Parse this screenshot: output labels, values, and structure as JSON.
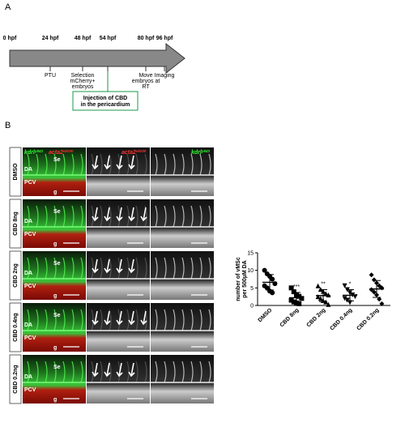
{
  "panel_a": {
    "letter": "A",
    "timepoints": [
      "0 hpf",
      "24 hpf",
      "48 hpf",
      "54 hpf",
      "80 hpf",
      "96 hpf"
    ],
    "events": [
      [
        "PTU"
      ],
      [
        "Selection",
        "mCherry+",
        "embryos"
      ],
      [
        "Move",
        "embryos at",
        "RT"
      ],
      [
        "Imaging"
      ]
    ],
    "injection": [
      "Injection of CBD",
      "in the pericardium"
    ]
  },
  "panel_b": {
    "letter": "B",
    "rows": [
      "DMSO",
      "CBD 8ng",
      "CBD 2ng",
      "CBD 0.4ng",
      "CBD 0.2ng"
    ],
    "channels": [
      {
        "name": "kdrl",
        "sup": "y843"
      },
      {
        "name": "acta2",
        "sup": "sk030"
      }
    ],
    "labels": {
      "se": "Se",
      "da": "DA",
      "pcv": "PCV",
      "g": "g"
    }
  },
  "chart_data": {
    "type": "dotplot",
    "ylabel": [
      "number of vMSc",
      "per 500µM DA"
    ],
    "categories": [
      "DMSO",
      "CBD 8ng",
      "CBD 2ng",
      "CBD 0.4ng",
      "CBD 0.2ng"
    ],
    "values": [
      6.6,
      2.2,
      2.8,
      2.9,
      4.7
    ],
    "errors": [
      2.2,
      1.5,
      1.7,
      1.6,
      2.4
    ],
    "points": [
      [
        10,
        9,
        8.3,
        7.5,
        6.2,
        5.6,
        5,
        4.1,
        3.6
      ],
      [
        5,
        3.9,
        3,
        2.6,
        2,
        1.5,
        1,
        0.7,
        0.5
      ],
      [
        5.6,
        4.6,
        4,
        3.4,
        3,
        2.5,
        2,
        1.4,
        1,
        0.3
      ],
      [
        5.6,
        4.5,
        3.6,
        3,
        2.5,
        2,
        1.5,
        0.8
      ],
      [
        8.7,
        7.3,
        6.4,
        5.6,
        5,
        4.5,
        3.8,
        3,
        1.8,
        0.5
      ]
    ],
    "significance": [
      null,
      "***",
      "**",
      "*",
      null
    ],
    "markers": [
      "circle",
      "square",
      "triangle",
      "triangle-down",
      "diamond"
    ],
    "color": "#000000",
    "ylim": [
      0,
      15
    ],
    "yticks": [
      0,
      5,
      10,
      15
    ]
  }
}
